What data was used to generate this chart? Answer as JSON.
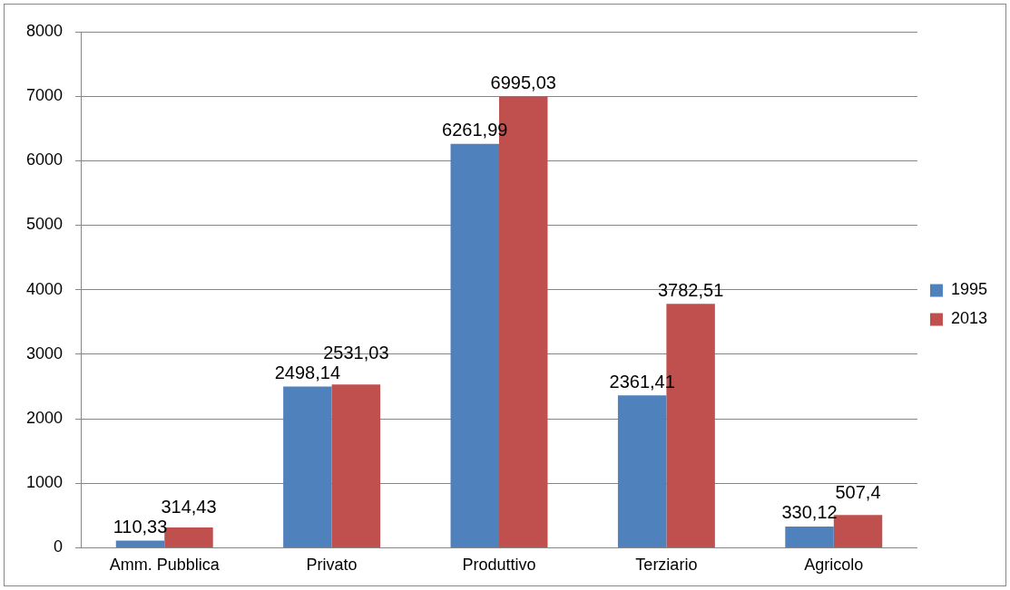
{
  "chart_data": {
    "type": "bar",
    "categories": [
      "Amm. Pubblica",
      "Privato",
      "Produttivo",
      "Terziario",
      "Agricolo"
    ],
    "series": [
      {
        "name": "1995",
        "color": "#4f81bd",
        "values": [
          110.33,
          2498.14,
          6261.99,
          2361.41,
          330.12
        ],
        "value_labels": [
          "110,33",
          "2498,14",
          "6261,99",
          "2361,41",
          "330,12"
        ]
      },
      {
        "name": "2013",
        "color": "#c0504d",
        "values": [
          314.43,
          2531.03,
          6995.03,
          3782.51,
          507.4
        ],
        "value_labels": [
          "314,43",
          "2531,03",
          "6995,03",
          "3782,51",
          "507,4"
        ]
      }
    ],
    "ylim": [
      0,
      8000
    ],
    "yticks": [
      0,
      1000,
      2000,
      3000,
      4000,
      5000,
      6000,
      7000,
      8000
    ],
    "grid": "y",
    "legend": "right"
  }
}
